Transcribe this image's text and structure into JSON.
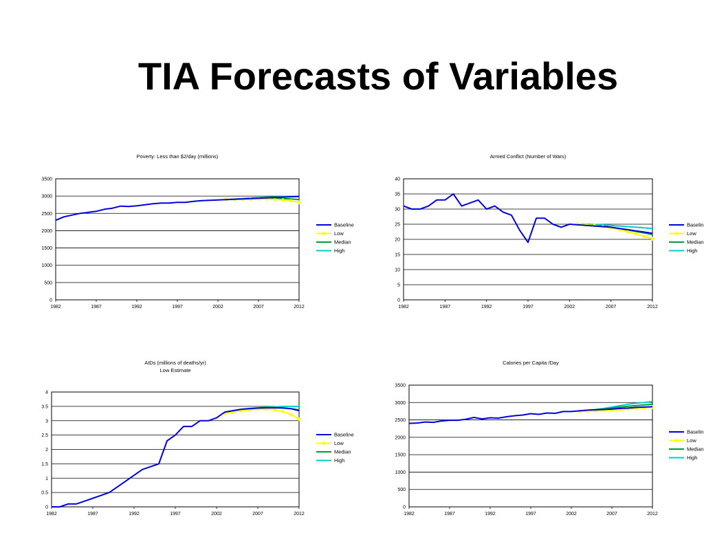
{
  "slide": {
    "title": "TIA Forecasts of Variables"
  },
  "colors": {
    "baseline": "#0000dd",
    "low": "#ffff00",
    "median": "#009933",
    "high": "#00cccc"
  },
  "chart_data": [
    {
      "id": "poverty",
      "type": "line",
      "title": "Poverty: Less than $2/day (millions)",
      "subtitle": "",
      "xlim": [
        1982,
        2012
      ],
      "ylim": [
        0,
        3500
      ],
      "x_ticks": [
        1982,
        1987,
        1992,
        1997,
        2002,
        2007,
        2012
      ],
      "y_ticks": [
        "0",
        "500",
        "1000",
        "1500",
        "2000",
        "2500",
        "3000",
        "3500"
      ],
      "grid": true,
      "legend_position": "right",
      "series": [
        {
          "name": "Baseline",
          "color": "#0000dd",
          "marker": false,
          "x": [
            1982,
            1983,
            1984,
            1985,
            1986,
            1987,
            1988,
            1989,
            1990,
            1991,
            1992,
            1993,
            1994,
            1995,
            1996,
            1997,
            1998,
            1999,
            2000,
            2001,
            2002,
            2003,
            2004,
            2005,
            2006,
            2007,
            2008,
            2009,
            2010,
            2011,
            2012
          ],
          "y": [
            2300,
            2400,
            2450,
            2500,
            2530,
            2560,
            2620,
            2650,
            2710,
            2700,
            2720,
            2750,
            2780,
            2800,
            2800,
            2820,
            2820,
            2850,
            2870,
            2880,
            2890,
            2900,
            2910,
            2920,
            2930,
            2940,
            2950,
            2960,
            2970,
            2980,
            2990
          ]
        },
        {
          "name": "Low",
          "color": "#ffff00",
          "marker": true,
          "x": [
            2003,
            2004,
            2005,
            2006,
            2007,
            2008,
            2009,
            2010,
            2011,
            2012
          ],
          "y": [
            2900,
            2905,
            2910,
            2915,
            2920,
            2915,
            2905,
            2890,
            2860,
            2820
          ]
        },
        {
          "name": "Median",
          "color": "#009933",
          "marker": false,
          "x": [
            2003,
            2004,
            2005,
            2006,
            2007,
            2008,
            2009,
            2010,
            2011,
            2012
          ],
          "y": [
            2900,
            2910,
            2920,
            2930,
            2940,
            2940,
            2940,
            2930,
            2920,
            2900
          ]
        },
        {
          "name": "High",
          "color": "#00cccc",
          "marker": false,
          "x": [
            2003,
            2004,
            2005,
            2006,
            2007,
            2008,
            2009,
            2010,
            2011,
            2012
          ],
          "y": [
            2900,
            2915,
            2930,
            2945,
            2960,
            2970,
            2975,
            2980,
            2985,
            2990
          ]
        }
      ]
    },
    {
      "id": "armed-conflict",
      "type": "line",
      "title": "Armed Conflict (Number of Wars)",
      "subtitle": "",
      "xlim": [
        1982,
        2012
      ],
      "ylim": [
        0,
        40
      ],
      "x_ticks": [
        1982,
        1987,
        1992,
        1997,
        2002,
        2007,
        2012
      ],
      "y_ticks": [
        "0",
        "5",
        "10",
        "15",
        "20",
        "25",
        "30",
        "35",
        "40"
      ],
      "grid": true,
      "legend_position": "right",
      "series": [
        {
          "name": "Baseline",
          "color": "#0000dd",
          "marker": false,
          "x": [
            1982,
            1983,
            1984,
            1985,
            1986,
            1987,
            1988,
            1989,
            1990,
            1991,
            1992,
            1993,
            1994,
            1995,
            1996,
            1997,
            1998,
            1999,
            2000,
            2001,
            2002,
            2003,
            2004,
            2005,
            2006,
            2007,
            2008,
            2009,
            2010,
            2011,
            2012
          ],
          "y": [
            31,
            30,
            30,
            31,
            33,
            33,
            35,
            31,
            32,
            33,
            30,
            31,
            29,
            28,
            23,
            19,
            27,
            27,
            25,
            24,
            25,
            24.8,
            24.6,
            24.4,
            24.2,
            24,
            23.6,
            23.2,
            22.8,
            22.4,
            22
          ]
        },
        {
          "name": "Low",
          "color": "#ffff00",
          "marker": true,
          "x": [
            2003,
            2004,
            2005,
            2006,
            2007,
            2008,
            2009,
            2010,
            2011,
            2012
          ],
          "y": [
            25,
            24.8,
            24.6,
            24.2,
            23.8,
            23.2,
            22.5,
            21.8,
            21,
            20.2
          ]
        },
        {
          "name": "Median",
          "color": "#009933",
          "marker": false,
          "x": [
            2003,
            2004,
            2005,
            2006,
            2007,
            2008,
            2009,
            2010,
            2011,
            2012
          ],
          "y": [
            25,
            24.9,
            24.7,
            24.4,
            24,
            23.6,
            23.1,
            22.6,
            22.1,
            21.6
          ]
        },
        {
          "name": "High",
          "color": "#00cccc",
          "marker": false,
          "x": [
            2003,
            2004,
            2005,
            2006,
            2007,
            2008,
            2009,
            2010,
            2011,
            2012
          ],
          "y": [
            25,
            25,
            24.9,
            24.8,
            24.6,
            24.4,
            24.2,
            24,
            23.8,
            23.6
          ]
        }
      ]
    },
    {
      "id": "aids",
      "type": "line",
      "title": "AIDs (millions of deaths/yr)",
      "subtitle": "Low Estimate",
      "xlim": [
        1982,
        2012
      ],
      "ylim": [
        0,
        4
      ],
      "x_ticks": [
        1982,
        1987,
        1992,
        1997,
        2002,
        2007,
        2012
      ],
      "y_ticks": [
        "0",
        "0.5",
        "1",
        "1.5",
        "2",
        "2.5",
        "3",
        "3.5",
        "4"
      ],
      "grid": true,
      "legend_position": "right",
      "series": [
        {
          "name": "Baseline",
          "color": "#0000dd",
          "marker": false,
          "x": [
            1982,
            1983,
            1984,
            1985,
            1986,
            1987,
            1988,
            1989,
            1990,
            1991,
            1992,
            1993,
            1994,
            1995,
            1996,
            1997,
            1998,
            1999,
            2000,
            2001,
            2002,
            2003,
            2004,
            2005,
            2006,
            2007,
            2008,
            2009,
            2010,
            2011,
            2012
          ],
          "y": [
            0,
            0,
            0.1,
            0.1,
            0.2,
            0.3,
            0.4,
            0.5,
            0.7,
            0.9,
            1.1,
            1.3,
            1.4,
            1.5,
            2.3,
            2.5,
            2.8,
            2.8,
            3.0,
            3.0,
            3.1,
            3.3,
            3.35,
            3.4,
            3.42,
            3.44,
            3.45,
            3.45,
            3.45,
            3.42,
            3.35
          ]
        },
        {
          "name": "Low",
          "color": "#ffff00",
          "marker": true,
          "x": [
            2003,
            2004,
            2005,
            2006,
            2007,
            2008,
            2009,
            2010,
            2011,
            2012
          ],
          "y": [
            3.25,
            3.3,
            3.35,
            3.38,
            3.4,
            3.4,
            3.38,
            3.32,
            3.22,
            3.05
          ]
        },
        {
          "name": "Median",
          "color": "#009933",
          "marker": false,
          "x": [
            2003,
            2004,
            2005,
            2006,
            2007,
            2008,
            2009,
            2010,
            2011,
            2012
          ],
          "y": [
            3.3,
            3.35,
            3.4,
            3.42,
            3.44,
            3.45,
            3.45,
            3.44,
            3.42,
            3.38
          ]
        },
        {
          "name": "High",
          "color": "#00cccc",
          "marker": false,
          "x": [
            2003,
            2004,
            2005,
            2006,
            2007,
            2008,
            2009,
            2010,
            2011,
            2012
          ],
          "y": [
            3.3,
            3.35,
            3.4,
            3.43,
            3.45,
            3.47,
            3.48,
            3.5,
            3.5,
            3.5
          ]
        }
      ]
    },
    {
      "id": "calories",
      "type": "line",
      "title": "Calories per Capita /Day",
      "subtitle": "",
      "xlim": [
        1982,
        2012
      ],
      "ylim": [
        0,
        3500
      ],
      "x_ticks": [
        1982,
        1987,
        1992,
        1997,
        2002,
        2007,
        2012
      ],
      "y_ticks": [
        "0",
        "500",
        "1000",
        "1500",
        "2000",
        "2500",
        "3000",
        "3500"
      ],
      "grid": true,
      "legend_position": "right",
      "series": [
        {
          "name": "Baseline",
          "color": "#0000dd",
          "marker": false,
          "x": [
            1982,
            1983,
            1984,
            1985,
            1986,
            1987,
            1988,
            1989,
            1990,
            1991,
            1992,
            1993,
            1994,
            1995,
            1996,
            1997,
            1998,
            1999,
            2000,
            2001,
            2002,
            2003,
            2004,
            2005,
            2006,
            2007,
            2008,
            2009,
            2010,
            2011,
            2012
          ],
          "y": [
            2400,
            2410,
            2440,
            2430,
            2470,
            2490,
            2490,
            2520,
            2570,
            2530,
            2560,
            2550,
            2590,
            2620,
            2640,
            2680,
            2660,
            2700,
            2690,
            2740,
            2740,
            2760,
            2780,
            2790,
            2800,
            2810,
            2830,
            2840,
            2860,
            2870,
            2880
          ]
        },
        {
          "name": "Low",
          "color": "#ffff00",
          "marker": true,
          "x": [
            2003,
            2004,
            2005,
            2006,
            2007,
            2008,
            2009,
            2010,
            2011,
            2012
          ],
          "y": [
            2740,
            2750,
            2760,
            2770,
            2780,
            2790,
            2810,
            2830,
            2850,
            2870
          ]
        },
        {
          "name": "Median",
          "color": "#009933",
          "marker": false,
          "x": [
            2003,
            2004,
            2005,
            2006,
            2007,
            2008,
            2009,
            2010,
            2011,
            2012
          ],
          "y": [
            2750,
            2770,
            2790,
            2810,
            2840,
            2870,
            2890,
            2910,
            2930,
            2950
          ]
        },
        {
          "name": "High",
          "color": "#00cccc",
          "marker": false,
          "x": [
            2003,
            2004,
            2005,
            2006,
            2007,
            2008,
            2009,
            2010,
            2011,
            2012
          ],
          "y": [
            2760,
            2780,
            2800,
            2830,
            2870,
            2910,
            2950,
            2980,
            3000,
            3030
          ]
        }
      ]
    }
  ]
}
